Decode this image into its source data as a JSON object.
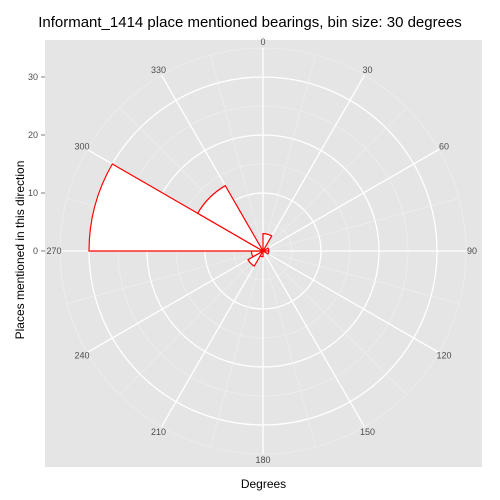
{
  "chart_data": {
    "type": "bar",
    "coord": "polar",
    "title": "Informant_1414 place mentioned bearings, bin size: 30 degrees",
    "xlabel": "Degrees",
    "ylabel": "Places mentioned in this direction",
    "angle_ticks": [
      "0",
      "30",
      "60",
      "90",
      "120",
      "150",
      "180",
      "210",
      "240",
      "270",
      "300",
      "330"
    ],
    "radial_ticks": [
      "0",
      "10",
      "20",
      "30"
    ],
    "ylim": [
      0,
      35
    ],
    "bin_size": 30,
    "categories": [
      "0-30",
      "30-60",
      "60-90",
      "90-120",
      "120-150",
      "150-180",
      "180-210",
      "210-240",
      "240-270",
      "270-300",
      "300-330",
      "330-360"
    ],
    "values": [
      3,
      0,
      1,
      1,
      0,
      0,
      1,
      3,
      2,
      30,
      13,
      0
    ],
    "bar_fill": "#ffffff",
    "bar_stroke": "#ff0000",
    "panel_background": "#e5e5e5",
    "grid_color": "#ffffff"
  }
}
